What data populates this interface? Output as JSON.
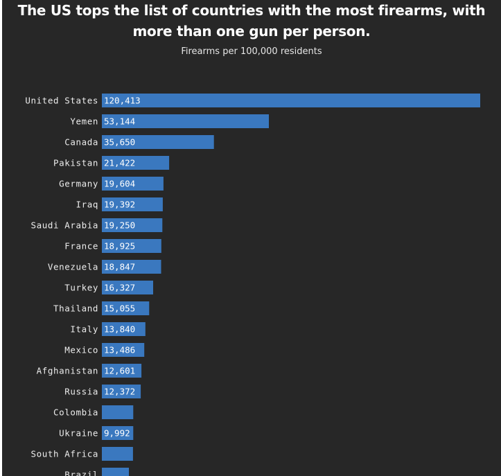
{
  "chart_data": {
    "type": "bar",
    "orientation": "horizontal",
    "title": "The US tops the list of countries with the most firearms, with more than one gun per person.",
    "subtitle": "Firearms per 100,000 residents",
    "categories": [
      "United States",
      "Yemen",
      "Canada",
      "Pakistan",
      "Germany",
      "Iraq",
      "Saudi Arabia",
      "France",
      "Venezuela",
      "Turkey",
      "Thailand",
      "Italy",
      "Mexico",
      "Afghanistan",
      "Russia",
      "Colombia",
      "Ukraine",
      "South Africa",
      "Brazil"
    ],
    "values": [
      120413,
      53144,
      35650,
      21422,
      19604,
      19392,
      19250,
      18925,
      18847,
      16327,
      15055,
      13840,
      13486,
      12601,
      12372,
      10000,
      9992,
      9900,
      8600
    ],
    "value_labels": [
      "120,413",
      "53,144",
      "35,650",
      "21,422",
      "19,604",
      "19,392",
      "19,250",
      "18,925",
      "18,847",
      "16,327",
      "15,055",
      "13,840",
      "13,486",
      "12,601",
      "12,372",
      "",
      "9,992",
      "",
      ""
    ],
    "xlim": [
      0,
      120413
    ],
    "grid": false,
    "legend": "none",
    "bar_color": "#3a78bf",
    "background_color": "#272727"
  }
}
